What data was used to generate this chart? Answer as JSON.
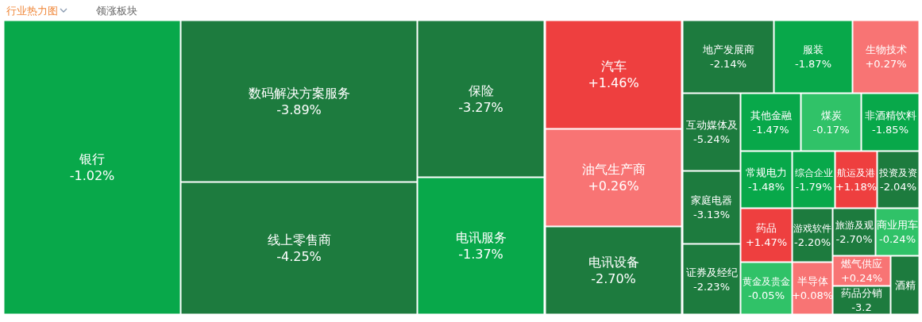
{
  "chart_data": {
    "type": "other",
    "annotations": [
      "行业热力图",
      "领涨板块"
    ],
    "categories": [
      "银行",
      "数码解决方案服务",
      "线上零售商",
      "保险",
      "电讯服务",
      "汽车",
      "油气生产商",
      "电讯设备",
      "地产发展商",
      "服装",
      "生物技术",
      "互动媒体及",
      "其他金融",
      "煤炭",
      "非酒精饮料",
      "家庭电器",
      "常规电力",
      "综合企业",
      "航运及港",
      "投资及资",
      "药品",
      "游戏软件",
      "旅游及观",
      "商业用车",
      "证券及经纪",
      "黄金及贵金",
      "半导体",
      "燃气供应",
      "药品分销",
      "酒精"
    ],
    "values": [
      -1.02,
      -3.89,
      -4.25,
      -3.27,
      -1.37,
      1.46,
      0.26,
      -2.7,
      -2.14,
      -1.87,
      0.27,
      -5.24,
      -1.47,
      -0.17,
      -1.85,
      -3.13,
      -1.48,
      -1.79,
      1.18,
      -2.04,
      1.47,
      -2.2,
      -2.7,
      -0.24,
      -2.23,
      -0.05,
      0.08,
      0.24,
      null,
      null
    ],
    "value_labels": [
      "-1.02%",
      "-3.89%",
      "-4.25%",
      "-3.27%",
      "-1.37%",
      "+1.46%",
      "+0.26%",
      "-2.70%",
      "-2.14%",
      "-1.87%",
      "+0.27%",
      "-5.24%",
      "-1.47%",
      "-0.17%",
      "-1.85%",
      "-3.13%",
      "-1.48%",
      "-1.79%",
      "+1.18%",
      "-2.04%",
      "+1.47%",
      "-2.20%",
      "-2.70%",
      "-0.24%",
      "-2.23%",
      "-0.05%",
      "+0.08%",
      "+0.24%",
      "-3.2",
      null
    ]
  }
}
